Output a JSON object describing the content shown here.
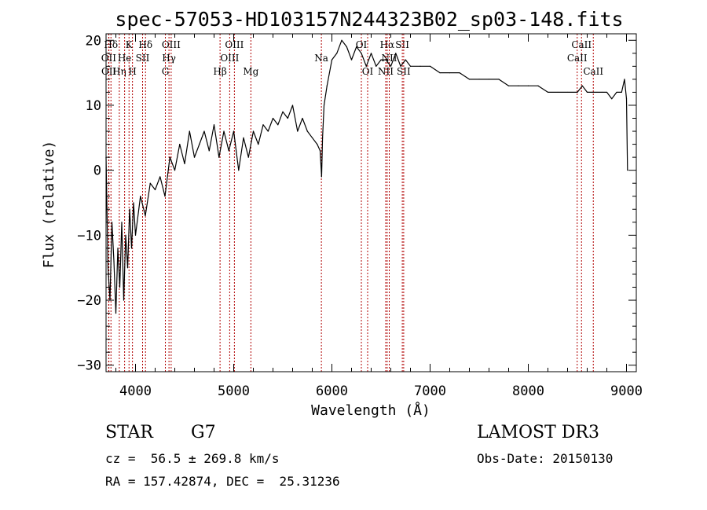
{
  "chart_data": {
    "type": "line",
    "title": "spec-57053-HD103157N244323B02_sp03-148.fits",
    "xlabel": "Wavelength (Å)",
    "ylabel": "Flux (relative)",
    "xlim": [
      3700,
      9100
    ],
    "ylim": [
      -31,
      21
    ],
    "x_ticks": [
      4000,
      5000,
      6000,
      7000,
      8000,
      9000
    ],
    "y_ticks": [
      -30,
      -20,
      -10,
      0,
      10,
      20
    ],
    "tick_labels": {
      "x": [
        "4000",
        "5000",
        "6000",
        "7000",
        "8000",
        "9000"
      ],
      "y": [
        "−30",
        "−20",
        "−10",
        "0",
        "10",
        "20"
      ]
    },
    "line_color": "#000000",
    "marker_color": "#b00000",
    "series": [
      {
        "name": "flux",
        "x": [
          3700,
          3720,
          3740,
          3760,
          3780,
          3800,
          3820,
          3840,
          3860,
          3880,
          3900,
          3920,
          3940,
          3960,
          3980,
          4000,
          4050,
          4100,
          4150,
          4200,
          4250,
          4300,
          4350,
          4400,
          4450,
          4500,
          4550,
          4600,
          4650,
          4700,
          4750,
          4800,
          4850,
          4900,
          4950,
          5000,
          5050,
          5100,
          5150,
          5200,
          5250,
          5300,
          5350,
          5400,
          5450,
          5500,
          5550,
          5600,
          5650,
          5700,
          5750,
          5800,
          5850,
          5880,
          5895,
          5905,
          5920,
          5950,
          6000,
          6050,
          6100,
          6150,
          6200,
          6250,
          6300,
          6350,
          6400,
          6450,
          6500,
          6550,
          6600,
          6650,
          6700,
          6750,
          6800,
          6900,
          7000,
          7100,
          7200,
          7300,
          7400,
          7500,
          7600,
          7700,
          7800,
          7900,
          8000,
          8100,
          8200,
          8300,
          8400,
          8500,
          8550,
          8600,
          8650,
          8700,
          8750,
          8800,
          8850,
          8900,
          8950,
          8980,
          9000,
          9010
        ],
        "y": [
          2,
          -15,
          -20,
          -8,
          -14,
          -22,
          -12,
          -18,
          -8,
          -20,
          -10,
          -15,
          -6,
          -12,
          -5,
          -10,
          -4,
          -7,
          -2,
          -3,
          -1,
          -4,
          2,
          0,
          4,
          1,
          6,
          2,
          4,
          6,
          3,
          7,
          2,
          6,
          3,
          6,
          0,
          5,
          2,
          6,
          4,
          7,
          6,
          8,
          7,
          9,
          8,
          10,
          6,
          8,
          6,
          5,
          4,
          3,
          -1,
          5,
          10,
          13,
          17,
          18,
          20,
          19,
          17,
          19,
          18,
          16,
          18,
          16,
          17,
          17,
          16,
          18,
          16,
          17,
          16,
          16,
          16,
          15,
          15,
          15,
          14,
          14,
          14,
          14,
          13,
          13,
          13,
          13,
          12,
          12,
          12,
          12,
          13,
          12,
          12,
          12,
          12,
          12,
          11,
          12,
          12,
          14,
          11,
          0
        ]
      }
    ],
    "line_markers": [
      {
        "label": "Hδ",
        "wavelength": 3750,
        "row": 0
      },
      {
        "label": "OII",
        "wavelength": 3727,
        "row": 1
      },
      {
        "label": "OII",
        "wavelength": 3729,
        "row": 2
      },
      {
        "label": "Hη",
        "wavelength": 3835,
        "row": 2
      },
      {
        "label": "He",
        "wavelength": 3889,
        "row": 1
      },
      {
        "label": "K",
        "wavelength": 3934,
        "row": 0
      },
      {
        "label": "H",
        "wavelength": 3969,
        "row": 2
      },
      {
        "label": "SII",
        "wavelength": 4072,
        "row": 1
      },
      {
        "label": "Hδ",
        "wavelength": 4102,
        "row": 0
      },
      {
        "label": "OIII",
        "wavelength": 4363,
        "row": 0
      },
      {
        "label": "Hγ",
        "wavelength": 4341,
        "row": 1
      },
      {
        "label": "G",
        "wavelength": 4304,
        "row": 2
      },
      {
        "label": "Hβ",
        "wavelength": 4861,
        "row": 2
      },
      {
        "label": "OIII",
        "wavelength": 5007,
        "row": 0
      },
      {
        "label": "OIII",
        "wavelength": 4959,
        "row": 1
      },
      {
        "label": "Mg",
        "wavelength": 5175,
        "row": 2
      },
      {
        "label": "Na",
        "wavelength": 5893,
        "row": 1
      },
      {
        "label": "OI",
        "wavelength": 6300,
        "row": 0
      },
      {
        "label": "OI",
        "wavelength": 6364,
        "row": 2
      },
      {
        "label": "Hα",
        "wavelength": 6563,
        "row": 0
      },
      {
        "label": "NII",
        "wavelength": 6584,
        "row": 1
      },
      {
        "label": "NII",
        "wavelength": 6548,
        "row": 2
      },
      {
        "label": "SII",
        "wavelength": 6717,
        "row": 0
      },
      {
        "label": "SII",
        "wavelength": 6731,
        "row": 2
      },
      {
        "label": "CaII",
        "wavelength": 8542,
        "row": 0
      },
      {
        "label": "CaII",
        "wavelength": 8498,
        "row": 1
      },
      {
        "label": "CaII",
        "wavelength": 8662,
        "row": 2
      }
    ]
  },
  "info": {
    "object_type": "STAR",
    "subclass": "G7",
    "survey": "LAMOST DR3",
    "redshift": "cz =  56.5 ± 269.8 km/s",
    "obs_date": "Obs-Date: 20150130",
    "coordinates": "RA = 157.42874, DEC =  25.31236"
  }
}
